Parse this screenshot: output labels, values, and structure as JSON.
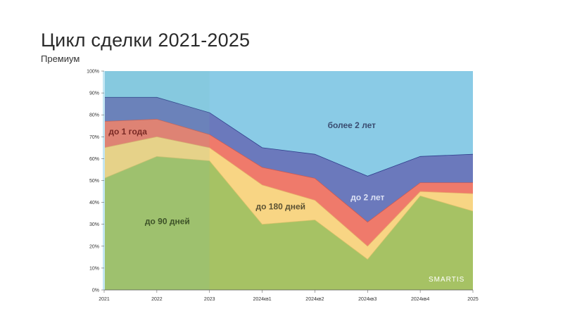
{
  "header": {
    "title": "Цикл сделки 2021-2025",
    "subtitle": "Премиум"
  },
  "watermark": "SMARTIS",
  "colors": {
    "series": [
      "#a6c264",
      "#f8d584",
      "#ef7a6b",
      "#6b79bc",
      "#8acbe6"
    ],
    "highlight": "#6cc0b0",
    "label_dark": "#3d5228",
    "label_light": "#dde2f4"
  },
  "chart_data": {
    "type": "area",
    "stacked": true,
    "percent": true,
    "categories": [
      "2021",
      "2022",
      "2023",
      "2024кв1",
      "2024кв2",
      "2024кв3",
      "2024кв4",
      "2025"
    ],
    "ylim": [
      0,
      100
    ],
    "yticks": [
      "0%",
      "10%",
      "20%",
      "30%",
      "40%",
      "50%",
      "60%",
      "70%",
      "80%",
      "90%",
      "100%"
    ],
    "grid": false,
    "legend": "none",
    "highlight_range": [
      "2021",
      "2023"
    ],
    "series": [
      {
        "name": "до 90 дней",
        "values": [
          51,
          61,
          59,
          30,
          32,
          14,
          43,
          36
        ]
      },
      {
        "name": "до 180 дней",
        "values": [
          14,
          9,
          6,
          18,
          9,
          6,
          2,
          8
        ]
      },
      {
        "name": "до 1 года",
        "values": [
          12,
          8,
          6,
          8,
          10,
          11,
          4,
          5
        ]
      },
      {
        "name": "до 2 лет",
        "values": [
          11,
          10,
          10,
          9,
          11,
          21,
          12,
          13
        ]
      },
      {
        "name": "более 2 лет",
        "values": [
          12,
          12,
          19,
          35,
          38,
          48,
          39,
          38
        ]
      }
    ]
  }
}
